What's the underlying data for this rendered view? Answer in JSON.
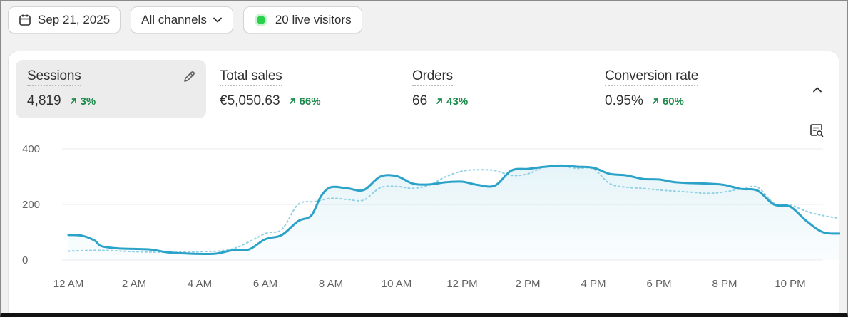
{
  "toolbar": {
    "date": "Sep 21, 2025",
    "channels": "All channels",
    "live_visitors": "20 live visitors"
  },
  "metrics": [
    {
      "label": "Sessions",
      "value": "4,819",
      "change": "3%"
    },
    {
      "label": "Total sales",
      "value": "€5,050.63",
      "change": "66%"
    },
    {
      "label": "Orders",
      "value": "66",
      "change": "43%"
    },
    {
      "label": "Conversion rate",
      "value": "0.95%",
      "change": "60%"
    }
  ],
  "colors": {
    "current": "#2ba3c9",
    "comparison": "#8fd0e4",
    "positive": "#1a8a4a",
    "live_dot": "#29d04b"
  },
  "chart_data": {
    "type": "line",
    "y_ticks": [
      "400",
      "200",
      "0"
    ],
    "x_ticks": [
      "12 AM",
      "2 AM",
      "4 AM",
      "6 AM",
      "8 AM",
      "10 AM",
      "12 PM",
      "2 PM",
      "4 PM",
      "6 PM",
      "8 PM",
      "10 PM"
    ],
    "ylim": [
      0,
      400
    ],
    "x_range_hours": [
      0,
      23.5
    ],
    "series": [
      {
        "style": "solid",
        "points": [
          [
            0,
            90
          ],
          [
            0.4,
            88
          ],
          [
            0.8,
            70
          ],
          [
            1,
            50
          ],
          [
            1.5,
            42
          ],
          [
            2,
            40
          ],
          [
            2.5,
            38
          ],
          [
            3,
            28
          ],
          [
            3.5,
            24
          ],
          [
            4,
            22
          ],
          [
            4.5,
            23
          ],
          [
            5,
            35
          ],
          [
            5.5,
            38
          ],
          [
            6,
            75
          ],
          [
            6.5,
            90
          ],
          [
            7,
            140
          ],
          [
            7.4,
            160
          ],
          [
            7.7,
            230
          ],
          [
            8,
            262
          ],
          [
            8.5,
            258
          ],
          [
            9,
            252
          ],
          [
            9.5,
            300
          ],
          [
            10,
            302
          ],
          [
            10.5,
            275
          ],
          [
            11,
            272
          ],
          [
            11.5,
            280
          ],
          [
            12,
            282
          ],
          [
            12.5,
            270
          ],
          [
            13,
            268
          ],
          [
            13.5,
            322
          ],
          [
            14,
            328
          ],
          [
            14.5,
            335
          ],
          [
            15,
            340
          ],
          [
            15.5,
            336
          ],
          [
            16,
            332
          ],
          [
            16.5,
            310
          ],
          [
            17,
            305
          ],
          [
            17.5,
            292
          ],
          [
            18,
            290
          ],
          [
            18.5,
            280
          ],
          [
            19,
            277
          ],
          [
            19.5,
            275
          ],
          [
            20,
            270
          ],
          [
            20.5,
            256
          ],
          [
            21,
            250
          ],
          [
            21.5,
            200
          ],
          [
            22,
            192
          ],
          [
            22.5,
            140
          ],
          [
            23,
            100
          ],
          [
            23.5,
            95
          ]
        ]
      },
      {
        "style": "dotted",
        "points": [
          [
            0,
            32
          ],
          [
            1,
            35
          ],
          [
            2,
            30
          ],
          [
            3,
            28
          ],
          [
            4,
            30
          ],
          [
            5,
            40
          ],
          [
            6,
            95
          ],
          [
            6.5,
            110
          ],
          [
            7,
            200
          ],
          [
            7.5,
            210
          ],
          [
            8,
            222
          ],
          [
            8.5,
            218
          ],
          [
            9,
            216
          ],
          [
            9.5,
            260
          ],
          [
            10,
            265
          ],
          [
            10.5,
            258
          ],
          [
            11,
            270
          ],
          [
            11.5,
            300
          ],
          [
            12,
            320
          ],
          [
            12.5,
            325
          ],
          [
            13,
            322
          ],
          [
            13.5,
            305
          ],
          [
            14,
            310
          ],
          [
            14.5,
            335
          ],
          [
            15,
            338
          ],
          [
            15.5,
            330
          ],
          [
            16,
            328
          ],
          [
            16.5,
            275
          ],
          [
            17,
            262
          ],
          [
            17.5,
            258
          ],
          [
            18,
            252
          ],
          [
            18.5,
            248
          ],
          [
            19,
            244
          ],
          [
            19.5,
            240
          ],
          [
            20,
            245
          ],
          [
            20.5,
            256
          ],
          [
            21,
            262
          ],
          [
            21.5,
            205
          ],
          [
            22,
            198
          ],
          [
            22.5,
            175
          ],
          [
            23,
            160
          ],
          [
            23.5,
            150
          ]
        ]
      }
    ]
  }
}
